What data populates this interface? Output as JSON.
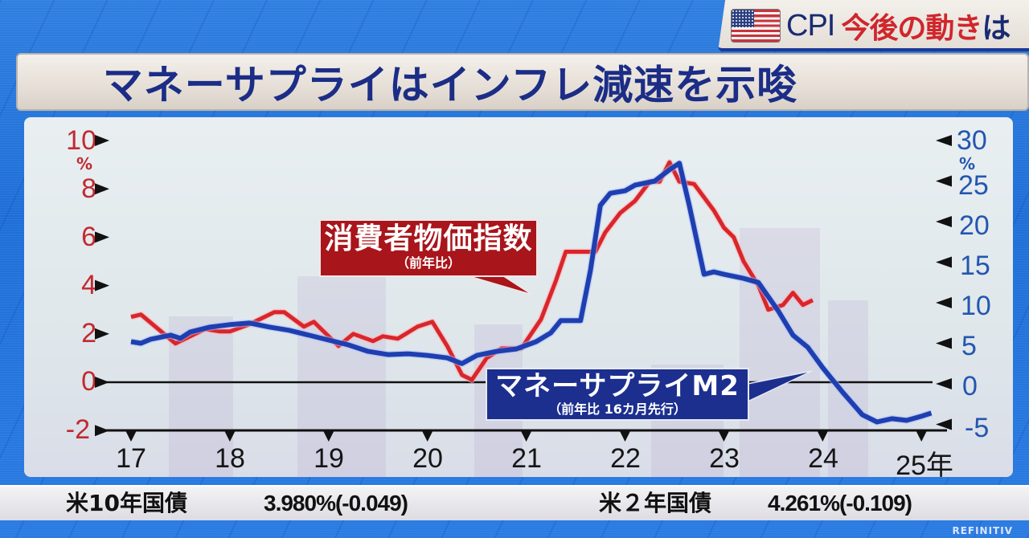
{
  "header": {
    "corner_banner": {
      "flag_icon": "us-flag-icon",
      "label_prefix": "CPI",
      "label_red": "今後の動き",
      "label_suffix": "は"
    },
    "title": "マネーサプライはインフレ減速を示唆"
  },
  "callouts": {
    "cpi": {
      "label": "消費者物価指数",
      "sub": "（前年比）",
      "color": "#a8151b"
    },
    "m2": {
      "label": "マネーサプライM2",
      "sub": "（前年比 16カ月先行）",
      "color": "#1c2f8f"
    }
  },
  "ticker": {
    "items": [
      {
        "label": "米10年国債",
        "value": "3.980%(-0.049)"
      },
      {
        "label": "米２年国債",
        "value": "4.261%(-0.109)"
      }
    ],
    "brand": "REFINITIV"
  },
  "chart_data": {
    "type": "line",
    "title": "マネーサプライはインフレ減速を示唆",
    "xlabel": "年",
    "x_ticks": [
      "17",
      "18",
      "19",
      "20",
      "21",
      "22",
      "23",
      "24",
      "25年"
    ],
    "xlim": [
      2017,
      2025
    ],
    "y_left": {
      "label": "%",
      "ticks": [
        "10",
        "8",
        "6",
        "4",
        "2",
        "0",
        "-2"
      ],
      "range": [
        -2,
        10
      ],
      "color": "#c22a30"
    },
    "y_right": {
      "label": "%",
      "ticks": [
        "30",
        "25",
        "20",
        "15",
        "10",
        "5",
        "0",
        "-5"
      ],
      "range": [
        -5,
        30
      ],
      "color": "#2456b0"
    },
    "zero_line": true,
    "grid": false,
    "legend_position": "callouts",
    "series": [
      {
        "name": "消費者物価指数（前年比）",
        "axis": "left",
        "color": "#d8262c",
        "points": [
          [
            2017.0,
            2.7
          ],
          [
            2017.1,
            2.8
          ],
          [
            2017.45,
            1.6
          ],
          [
            2017.6,
            1.9
          ],
          [
            2017.75,
            2.2
          ],
          [
            2017.9,
            2.1
          ],
          [
            2018.0,
            2.1
          ],
          [
            2018.2,
            2.4
          ],
          [
            2018.45,
            2.9
          ],
          [
            2018.55,
            2.9
          ],
          [
            2018.75,
            2.3
          ],
          [
            2018.85,
            2.5
          ],
          [
            2019.1,
            1.5
          ],
          [
            2019.25,
            2.0
          ],
          [
            2019.45,
            1.7
          ],
          [
            2019.55,
            1.9
          ],
          [
            2019.7,
            1.8
          ],
          [
            2019.9,
            2.3
          ],
          [
            2020.05,
            2.5
          ],
          [
            2020.2,
            1.5
          ],
          [
            2020.35,
            0.3
          ],
          [
            2020.45,
            0.1
          ],
          [
            2020.6,
            1.0
          ],
          [
            2020.75,
            1.4
          ],
          [
            2020.95,
            1.4
          ],
          [
            2021.15,
            2.6
          ],
          [
            2021.3,
            4.2
          ],
          [
            2021.4,
            5.4
          ],
          [
            2021.55,
            5.4
          ],
          [
            2021.7,
            5.4
          ],
          [
            2021.8,
            6.2
          ],
          [
            2021.95,
            7.0
          ],
          [
            2022.1,
            7.5
          ],
          [
            2022.25,
            8.3
          ],
          [
            2022.35,
            8.3
          ],
          [
            2022.45,
            9.1
          ],
          [
            2022.55,
            8.3
          ],
          [
            2022.7,
            8.2
          ],
          [
            2022.9,
            7.1
          ],
          [
            2023.0,
            6.4
          ],
          [
            2023.1,
            6.0
          ],
          [
            2023.2,
            5.0
          ],
          [
            2023.35,
            4.0
          ],
          [
            2023.45,
            3.0
          ],
          [
            2023.6,
            3.2
          ],
          [
            2023.7,
            3.7
          ],
          [
            2023.8,
            3.2
          ],
          [
            2023.9,
            3.4
          ]
        ]
      },
      {
        "name": "マネーサプライM2（前年比 16カ月先行）",
        "axis": "right",
        "color": "#1f3fb0",
        "points": [
          [
            2017.0,
            5.2
          ],
          [
            2017.1,
            5.0
          ],
          [
            2017.2,
            5.5
          ],
          [
            2017.4,
            6.0
          ],
          [
            2017.5,
            5.6
          ],
          [
            2017.6,
            6.4
          ],
          [
            2017.8,
            7.0
          ],
          [
            2018.0,
            7.3
          ],
          [
            2018.2,
            7.5
          ],
          [
            2018.4,
            7.0
          ],
          [
            2018.6,
            6.6
          ],
          [
            2018.8,
            6.0
          ],
          [
            2019.0,
            5.4
          ],
          [
            2019.2,
            4.8
          ],
          [
            2019.4,
            4.0
          ],
          [
            2019.6,
            3.6
          ],
          [
            2019.8,
            3.7
          ],
          [
            2020.0,
            3.5
          ],
          [
            2020.2,
            3.2
          ],
          [
            2020.35,
            2.5
          ],
          [
            2020.5,
            3.5
          ],
          [
            2020.7,
            4.0
          ],
          [
            2020.9,
            4.3
          ],
          [
            2021.1,
            5.2
          ],
          [
            2021.25,
            6.3
          ],
          [
            2021.35,
            7.8
          ],
          [
            2021.55,
            7.8
          ],
          [
            2021.65,
            14.0
          ],
          [
            2021.75,
            22.0
          ],
          [
            2021.85,
            23.5
          ],
          [
            2022.0,
            23.8
          ],
          [
            2022.1,
            24.5
          ],
          [
            2022.3,
            25.0
          ],
          [
            2022.45,
            26.4
          ],
          [
            2022.55,
            27.2
          ],
          [
            2022.65,
            22.0
          ],
          [
            2022.8,
            13.5
          ],
          [
            2022.9,
            13.8
          ],
          [
            2023.0,
            13.5
          ],
          [
            2023.2,
            13.0
          ],
          [
            2023.35,
            12.5
          ],
          [
            2023.55,
            9.0
          ],
          [
            2023.7,
            6.0
          ],
          [
            2023.85,
            4.5
          ],
          [
            2024.0,
            2.0
          ],
          [
            2024.2,
            -1.0
          ],
          [
            2024.4,
            -3.8
          ],
          [
            2024.55,
            -4.7
          ],
          [
            2024.7,
            -4.3
          ],
          [
            2024.85,
            -4.5
          ],
          [
            2025.0,
            -4.0
          ],
          [
            2025.1,
            -3.6
          ]
        ]
      }
    ]
  }
}
